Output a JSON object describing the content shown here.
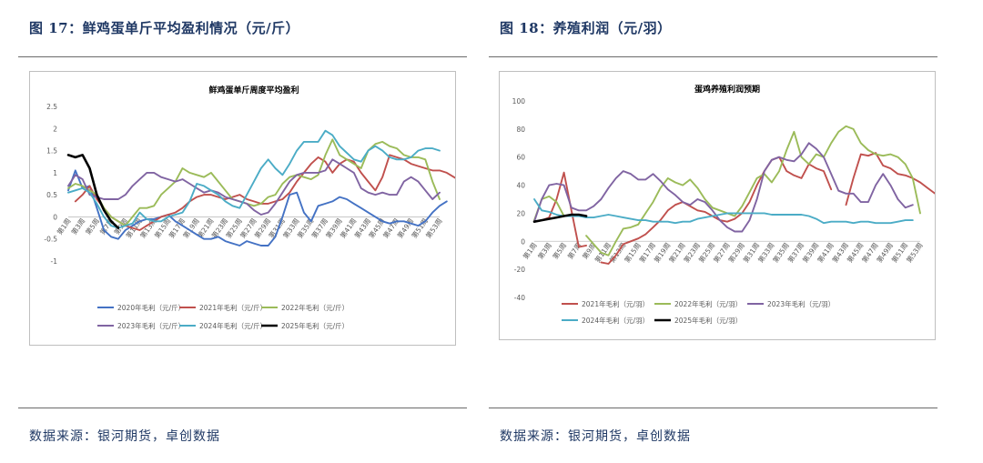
{
  "left": {
    "figure_title": "图 17：鲜鸡蛋单斤平均盈利情况（元/斤）",
    "source": "数据来源：银河期货，卓创数据"
  },
  "right": {
    "figure_title": "图 18：养殖利润（元/羽）",
    "source": "数据来源：银河期货，卓创数据"
  },
  "chart_data": [
    {
      "type": "line",
      "title": "鲜鸡蛋单斤周度平均盈利",
      "ylim": [
        -1,
        2.5
      ],
      "yticks": [
        -1,
        -0.5,
        0,
        0.5,
        1,
        1.5,
        2,
        2.5
      ],
      "ytick_labels": [
        "-1",
        "-0.5",
        "0",
        "0.5",
        "1",
        "1.5",
        "2",
        "2.5"
      ],
      "x_tick_labels": [
        "第1周",
        "第3周",
        "第5周",
        "第7周",
        "第9周",
        "第11周",
        "第13周",
        "第15周",
        "第17周",
        "第19周",
        "第21周",
        "第23周",
        "第25周",
        "第27周",
        "第29周",
        "第31周",
        "第33周",
        "第35周",
        "第37周",
        "第39周",
        "第41周",
        "第43周",
        "第45周",
        "第47周",
        "第49周",
        "第51周",
        "第53周"
      ],
      "series": [
        {
          "name": "2020年毛利（元/斤）",
          "color": "#4472c4",
          "start_week": 1,
          "values": [
            0.6,
            1.05,
            0.65,
            0.7,
            0.2,
            -0.3,
            -0.45,
            -0.5,
            -0.3,
            -0.2,
            -0.1,
            -0.05,
            -0.05,
            0,
            0.05,
            -0.1,
            -0.2,
            -0.3,
            -0.4,
            -0.5,
            -0.5,
            -0.45,
            -0.55,
            -0.6,
            -0.65,
            -0.55,
            -0.6,
            -0.65,
            -0.65,
            -0.45,
            0,
            0.5,
            0.55,
            0.1,
            -0.1,
            0.25,
            0.3,
            0.35,
            0.45,
            0.4,
            0.3,
            0.2,
            0.1,
            0,
            -0.1,
            -0.15,
            -0.1,
            -0.1,
            -0.15,
            -0.2,
            -0.1,
            0.1,
            0.25,
            0.35
          ]
        },
        {
          "name": "2021年毛利（元/斤）",
          "color": "#c0504d",
          "start_week": 2,
          "values": [
            0.35,
            0.5,
            0.7,
            0.4,
            0.2,
            0,
            -0.1,
            -0.2,
            -0.25,
            -0.3,
            -0.2,
            -0.1,
            0,
            0.05,
            0.1,
            0.2,
            0.35,
            0.45,
            0.5,
            0.5,
            0.45,
            0.4,
            0.45,
            0.5,
            0.4,
            0.35,
            0.3,
            0.3,
            0.35,
            0.4,
            0.55,
            0.8,
            1.0,
            1.2,
            1.35,
            1.25,
            1.0,
            1.2,
            1.3,
            1.25,
            1.0,
            0.8,
            0.6,
            0.9,
            1.4,
            1.35,
            1.3,
            1.2,
            1.15,
            1.1,
            1.05,
            1.05,
            1.0,
            0.9,
            0.8
          ]
        },
        {
          "name": "2022年毛利（元/斤）",
          "color": "#9bbb59",
          "start_week": 1,
          "values": [
            0.65,
            0.75,
            0.7,
            0.6,
            0.5,
            0.2,
            0,
            -0.1,
            -0.2,
            0,
            0.2,
            0.2,
            0.25,
            0.5,
            0.65,
            0.8,
            1.1,
            1.0,
            0.95,
            0.9,
            1.0,
            0.8,
            0.6,
            0.4,
            0.35,
            0.3,
            0.25,
            0.3,
            0.45,
            0.5,
            0.75,
            0.9,
            0.95,
            0.9,
            0.85,
            0.95,
            1.4,
            1.75,
            1.4,
            1.3,
            1.2,
            1.1,
            1.5,
            1.65,
            1.7,
            1.6,
            1.55,
            1.4,
            1.35,
            1.35,
            1.3,
            0.8,
            0.4
          ]
        },
        {
          "name": "2023年毛利（元/斤）",
          "color": "#8064a2",
          "start_week": 1,
          "values": [
            0.7,
            0.95,
            0.85,
            0.5,
            0.45,
            0.4,
            0.4,
            0.4,
            0.5,
            0.7,
            0.85,
            1.0,
            1.0,
            0.9,
            0.85,
            0.8,
            0.85,
            0.75,
            0.65,
            0.55,
            0.6,
            0.55,
            0.45,
            0.4,
            0.35,
            0.3,
            0.15,
            0.05,
            0.1,
            0.3,
            0.55,
            0.8,
            0.95,
            1.0,
            1.0,
            1.0,
            1.05,
            1.3,
            1.2,
            1.1,
            1.0,
            0.65,
            0.55,
            0.5,
            0.55,
            0.5,
            0.5,
            0.8,
            0.9,
            0.8,
            0.6,
            0.4,
            0.55
          ]
        },
        {
          "name": "2024年毛利（元/斤）",
          "color": "#4bacc6",
          "start_week": 1,
          "values": [
            0.55,
            0.6,
            0.65,
            0.55,
            0.3,
            0,
            -0.2,
            -0.25,
            -0.2,
            -0.15,
            0.1,
            -0.05,
            -0.1,
            -0.1,
            0,
            0.05,
            0.1,
            0.35,
            0.75,
            0.7,
            0.6,
            0.5,
            0.35,
            0.25,
            0.2,
            0.5,
            0.8,
            1.1,
            1.3,
            1.1,
            0.95,
            1.2,
            1.5,
            1.7,
            1.7,
            1.7,
            1.95,
            1.85,
            1.6,
            1.45,
            1.3,
            1.25,
            1.5,
            1.6,
            1.5,
            1.35,
            1.3,
            1.3,
            1.35,
            1.5,
            1.55,
            1.55,
            1.5
          ]
        },
        {
          "name": "2025年毛利（元/斤）",
          "color": "#000000",
          "start_week": 1,
          "values": [
            1.4,
            1.35,
            1.4,
            1.1,
            0.5,
            0.15,
            -0.1,
            -0.25
          ]
        }
      ]
    },
    {
      "type": "line",
      "title": "蛋鸡养殖利润预期",
      "ylim": [
        -40,
        100
      ],
      "yticks": [
        -40,
        -20,
        0,
        20,
        40,
        60,
        80,
        100
      ],
      "ytick_labels": [
        "-40",
        "-20",
        "0",
        "20",
        "40",
        "60",
        "80",
        "100"
      ],
      "x_tick_labels": [
        "第1周",
        "第3周",
        "第5周",
        "第7周",
        "第9周",
        "第11周",
        "第13周",
        "第15周",
        "第17周",
        "第19周",
        "第21周",
        "第23周",
        "第25周",
        "第27周",
        "第29周",
        "第31周",
        "第33周",
        "第35周",
        "第37周",
        "第39周",
        "第41周",
        "第43周",
        "第45周",
        "第47周",
        "第49周",
        "第51周",
        "第53周"
      ],
      "series": [
        {
          "name": "2021年毛利（元/羽）",
          "color": "#c0504d",
          "start_week": 1,
          "segments": [
            {
              "start_week": 1,
              "values": [
                14,
                15,
                17,
                30,
                49,
                22,
                -4,
                -3
              ]
            },
            {
              "start_week": 10,
              "values": [
                -15,
                -16,
                -10,
                -2,
                0,
                2,
                5,
                10,
                15,
                22,
                26,
                28,
                25,
                22,
                21,
                18,
                15,
                14,
                16,
                20,
                28,
                40,
                50,
                58,
                60,
                50,
                47,
                45,
                55,
                52,
                50,
                37
              ]
            },
            {
              "start_week": 43,
              "values": [
                26,
                45,
                62,
                61,
                63,
                54,
                52,
                48,
                47,
                45,
                42,
                38,
                34
              ]
            }
          ]
        },
        {
          "name": "2022年毛利（元/羽）",
          "color": "#9bbb59",
          "start_week": 1,
          "segments": [
            {
              "start_week": 1,
              "values": [
                15,
                30,
                32,
                28,
                18
              ]
            },
            {
              "start_week": 8,
              "values": [
                4,
                -2,
                -8,
                -10,
                0,
                9,
                10,
                12,
                20,
                28,
                38,
                45,
                42,
                40,
                44,
                38,
                30,
                24,
                22,
                20,
                18,
                25,
                35,
                45,
                48,
                42,
                50,
                65,
                78,
                60,
                55,
                62,
                60,
                70,
                78,
                82,
                80,
                70,
                65,
                62,
                61,
                62,
                60,
                55,
                45,
                20
              ]
            }
          ]
        },
        {
          "name": "2023年毛利（元/羽）",
          "color": "#8064a2",
          "start_week": 1,
          "values": [
            14,
            30,
            40,
            41,
            40,
            24,
            22,
            22,
            25,
            30,
            38,
            45,
            50,
            48,
            44,
            44,
            48,
            43,
            37,
            33,
            28,
            26,
            30,
            28,
            22,
            15,
            10,
            7,
            7,
            15,
            30,
            50,
            58,
            60,
            58,
            57,
            62,
            70,
            66,
            60,
            48,
            36,
            34,
            34,
            28,
            28,
            40,
            48,
            40,
            30,
            24,
            26
          ]
        },
        {
          "name": "2024年毛利（元/羽）",
          "color": "#4bacc6",
          "start_week": 1,
          "values": [
            30,
            22,
            21,
            19,
            18,
            18,
            18,
            17,
            17,
            18,
            19,
            18,
            17,
            16,
            15,
            15,
            14,
            14,
            14,
            13,
            14,
            14,
            16,
            17,
            18,
            19,
            20,
            20,
            20,
            20,
            20,
            20,
            19,
            19,
            19,
            19,
            19,
            18,
            16,
            13,
            14,
            14,
            14,
            13,
            14,
            14,
            13,
            13,
            13,
            14,
            15,
            15
          ]
        },
        {
          "name": "2025年毛利（元/羽）",
          "color": "#000000",
          "start_week": 1,
          "values": [
            14,
            15,
            16,
            17,
            18,
            19,
            19,
            18
          ]
        }
      ]
    }
  ]
}
